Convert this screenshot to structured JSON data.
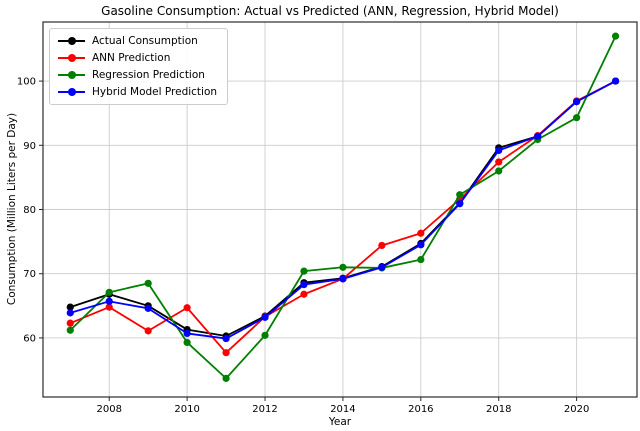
{
  "chart_data": {
    "type": "line",
    "title": "Gasoline Consumption: Actual vs Predicted (ANN, Regression, Hybrid Model)",
    "xlabel": "Year",
    "ylabel": "Consumption (Million Liters per Day)",
    "x": [
      2007,
      2008,
      2009,
      2010,
      2011,
      2012,
      2013,
      2014,
      2015,
      2016,
      2017,
      2018,
      2019,
      2020,
      2021
    ],
    "xticks": [
      2008,
      2010,
      2012,
      2014,
      2016,
      2018,
      2020
    ],
    "yticks": [
      60,
      70,
      80,
      90,
      100
    ],
    "xlim": [
      2006.3,
      2021.55
    ],
    "ylim": [
      50.8,
      109.2
    ],
    "grid": true,
    "legend_position": "upper left",
    "series": [
      {
        "name": "Actual Consumption",
        "color": "#000000",
        "values": [
          64.8,
          66.8,
          65.0,
          61.3,
          60.3,
          63.4,
          68.6,
          69.3,
          71.1,
          74.7,
          81.0,
          89.6,
          91.4,
          96.8,
          100.0
        ]
      },
      {
        "name": "ANN Prediction",
        "color": "#ff0000",
        "values": [
          62.3,
          64.8,
          61.1,
          64.7,
          57.7,
          63.3,
          66.8,
          69.2,
          74.4,
          76.3,
          81.6,
          87.4,
          91.5,
          96.9,
          100.0
        ]
      },
      {
        "name": "Regression Prediction",
        "color": "#008000",
        "values": [
          61.2,
          67.1,
          68.5,
          59.3,
          53.7,
          60.4,
          70.4,
          71.0,
          70.9,
          72.2,
          82.3,
          86.0,
          90.9,
          94.3,
          107.0
        ]
      },
      {
        "name": "Hybrid Model Prediction",
        "color": "#0000ff",
        "values": [
          63.9,
          65.7,
          64.6,
          60.7,
          59.9,
          63.2,
          68.3,
          69.2,
          71.0,
          74.5,
          80.9,
          89.2,
          91.4,
          96.8,
          100.0
        ]
      }
    ],
    "style": {
      "grid_color": "#cccccc",
      "spine_color": "#2b2b2b",
      "tick_font_px": 10
    }
  }
}
